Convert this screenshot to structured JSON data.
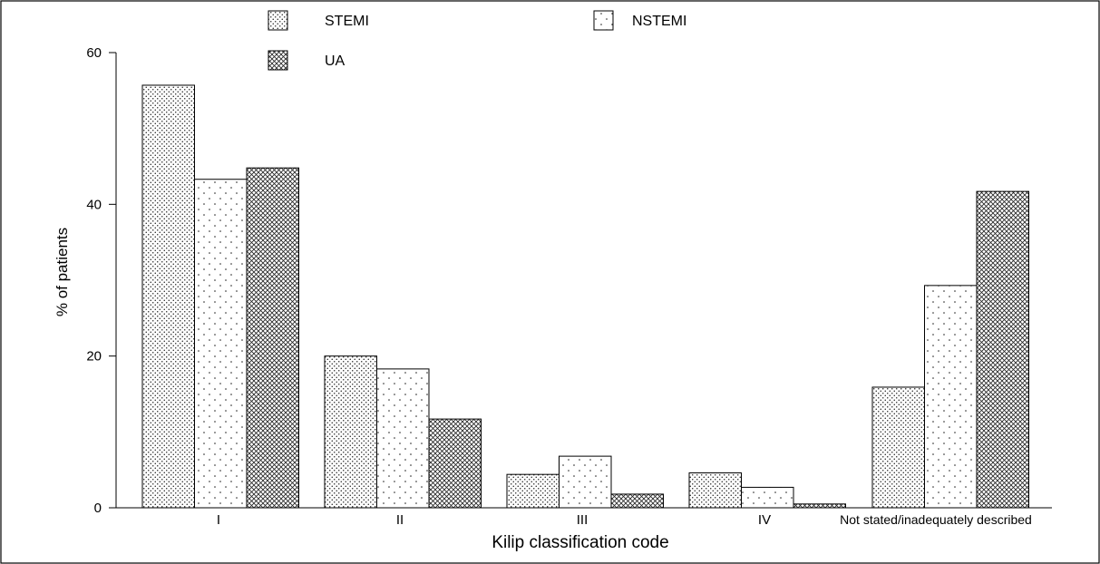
{
  "chart_data": {
    "type": "bar",
    "categories": [
      "I",
      "II",
      "III",
      "IV",
      "Not stated/inadequately described"
    ],
    "series": [
      {
        "name": "STEMI",
        "values": [
          55.7,
          20.0,
          4.4,
          4.6,
          15.9
        ]
      },
      {
        "name": "NSTEMI",
        "values": [
          43.3,
          18.3,
          6.8,
          2.7,
          29.3
        ]
      },
      {
        "name": "UA",
        "values": [
          44.8,
          11.7,
          1.8,
          0.5,
          41.7
        ]
      }
    ],
    "xlabel": "Kilip classification code",
    "ylabel": "% of patients",
    "ylim": [
      0,
      60
    ],
    "yticks": [
      "0",
      "20",
      "40",
      "60"
    ],
    "grid": false,
    "legend_position": "top",
    "colors": {
      "bar_outline": "#000000",
      "dot": "#222222",
      "background": "#ffffff"
    }
  }
}
